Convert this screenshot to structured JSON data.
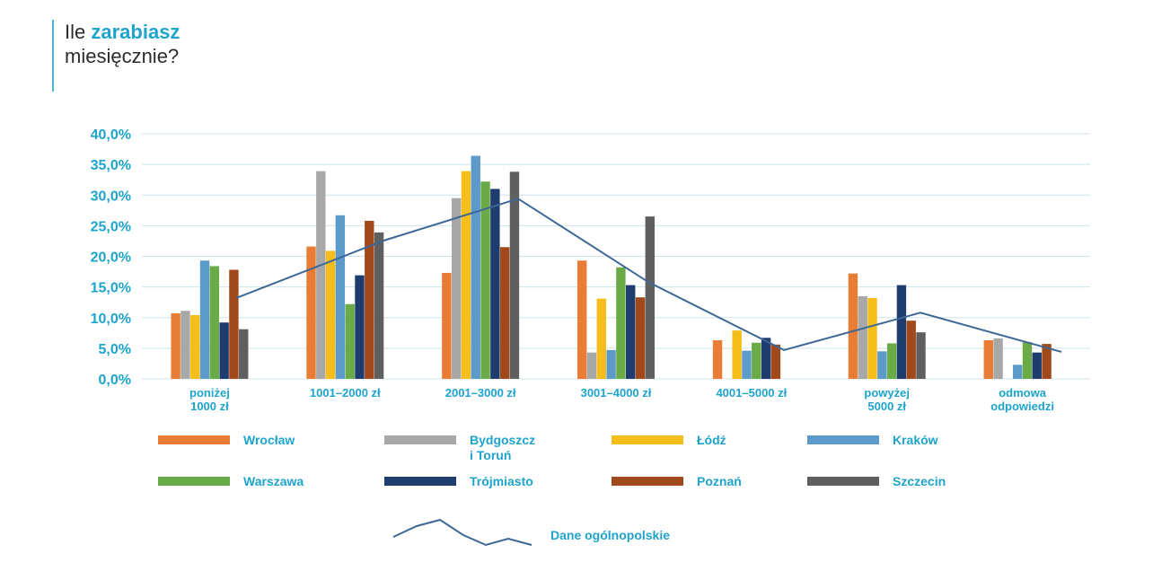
{
  "heading": {
    "prefix": "Ile",
    "bold": "zarabiasz",
    "line2": "miesięcznie?"
  },
  "colors": {
    "accent": "#1ea4cc",
    "grid": "#cfe3ec",
    "national_line": "#3d6896",
    "series": [
      "#ea7d35",
      "#a8a8a8",
      "#f6be1a",
      "#5b9ac9",
      "#6aab48",
      "#1f3c6e",
      "#a2491c",
      "#5f5f5f"
    ]
  },
  "chart_data": {
    "type": "bar",
    "title": "Ile zarabiasz miesięcznie?",
    "ylim": [
      0,
      40
    ],
    "yticks": [
      "0,0%",
      "5,0%",
      "10,0%",
      "15,0%",
      "20,0%",
      "25,0%",
      "30,0%",
      "35,0%",
      "40,0%"
    ],
    "categories": [
      [
        "poniżej",
        "1000 zł"
      ],
      [
        "1001–2000 zł"
      ],
      [
        "2001–3000 zł"
      ],
      [
        "3001–4000 zł"
      ],
      [
        "4001–5000 zł"
      ],
      [
        "powyżej",
        "5000 zł"
      ],
      [
        "odmowa",
        "odpowiedzi"
      ]
    ],
    "series": [
      {
        "name": [
          "Wrocław"
        ],
        "values": [
          10.7,
          21.6,
          17.3,
          19.3,
          6.3,
          17.2,
          6.3
        ]
      },
      {
        "name": [
          "Bydgoszcz",
          "i Toruń"
        ],
        "values": [
          11.1,
          33.9,
          29.5,
          4.3,
          0,
          13.5,
          6.6
        ]
      },
      {
        "name": [
          "Łódź"
        ],
        "values": [
          10.4,
          20.9,
          33.9,
          13.1,
          7.9,
          13.2,
          0
        ]
      },
      {
        "name": [
          "Kraków"
        ],
        "values": [
          19.3,
          26.7,
          36.4,
          4.7,
          4.6,
          4.5,
          2.3
        ]
      },
      {
        "name": [
          "Warszawa"
        ],
        "values": [
          18.4,
          12.2,
          32.2,
          18.2,
          5.9,
          5.8,
          6.0
        ]
      },
      {
        "name": [
          "Trójmiasto"
        ],
        "values": [
          9.2,
          16.9,
          31.0,
          15.3,
          6.7,
          15.3,
          4.3
        ]
      },
      {
        "name": [
          "Poznań"
        ],
        "values": [
          17.8,
          25.8,
          21.5,
          13.3,
          5.6,
          9.5,
          5.7
        ]
      },
      {
        "name": [
          "Szczecin"
        ],
        "values": [
          8.1,
          23.9,
          33.8,
          26.5,
          0,
          7.6,
          0
        ]
      }
    ],
    "national": {
      "name": "Dane ogólnopolskie",
      "values": [
        13.2,
        22.6,
        29.4,
        15.8,
        4.7,
        10.8,
        4.4
      ]
    }
  }
}
